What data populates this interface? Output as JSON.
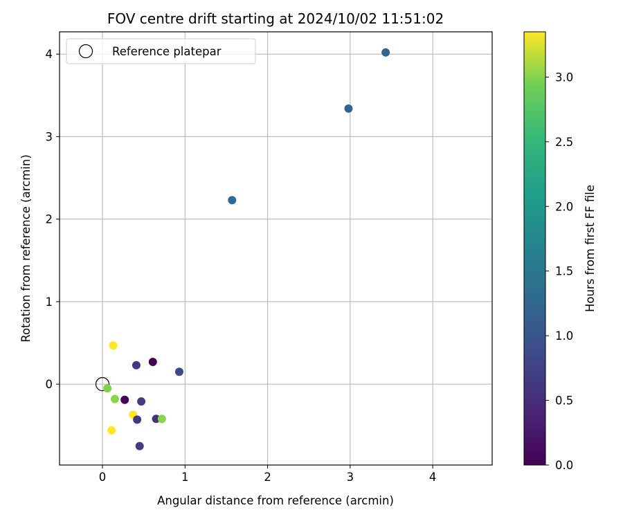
{
  "chart_data": {
    "type": "scatter",
    "title": "FOV centre drift starting at 2024/10/02 11:51:02",
    "xlabel": "Angular distance from reference (arcmin)",
    "ylabel": "Rotation from reference (arcmin)",
    "xlim": [
      -0.52,
      4.72
    ],
    "ylim": [
      -0.98,
      4.27
    ],
    "xticks": [
      "0",
      "1",
      "2",
      "3",
      "4"
    ],
    "yticks": [
      "0",
      "1",
      "2",
      "3",
      "4"
    ],
    "grid": true,
    "legend": {
      "location": "top-left",
      "label": "Reference platepar"
    },
    "reference": {
      "x": 0,
      "y": 0
    },
    "colorbar": {
      "label": "Hours from first FF file",
      "colormap": "viridis",
      "range": [
        0.0,
        3.35
      ],
      "ticks": [
        "0.0",
        "0.5",
        "1.0",
        "1.5",
        "2.0",
        "2.5",
        "3.0"
      ]
    },
    "points": [
      {
        "x": 3.43,
        "y": 4.02,
        "hours": 1.08
      },
      {
        "x": 2.98,
        "y": 3.34,
        "hours": 1.08
      },
      {
        "x": 1.57,
        "y": 2.23,
        "hours": 1.15
      },
      {
        "x": 0.13,
        "y": 0.47,
        "hours": 3.35
      },
      {
        "x": 0.61,
        "y": 0.27,
        "hours": 0.0
      },
      {
        "x": 0.41,
        "y": 0.23,
        "hours": 0.55
      },
      {
        "x": 0.93,
        "y": 0.15,
        "hours": 0.75
      },
      {
        "x": 0.06,
        "y": -0.05,
        "hours": 2.7
      },
      {
        "x": 0.15,
        "y": -0.18,
        "hours": 2.75
      },
      {
        "x": 0.27,
        "y": -0.19,
        "hours": 0.05
      },
      {
        "x": 0.47,
        "y": -0.21,
        "hours": 0.6
      },
      {
        "x": 0.37,
        "y": -0.37,
        "hours": 3.35
      },
      {
        "x": 0.42,
        "y": -0.43,
        "hours": 0.55
      },
      {
        "x": 0.65,
        "y": -0.42,
        "hours": 0.5
      },
      {
        "x": 0.72,
        "y": -0.42,
        "hours": 2.75
      },
      {
        "x": 0.11,
        "y": -0.56,
        "hours": 3.35
      },
      {
        "x": 0.45,
        "y": -0.75,
        "hours": 0.6
      }
    ]
  }
}
